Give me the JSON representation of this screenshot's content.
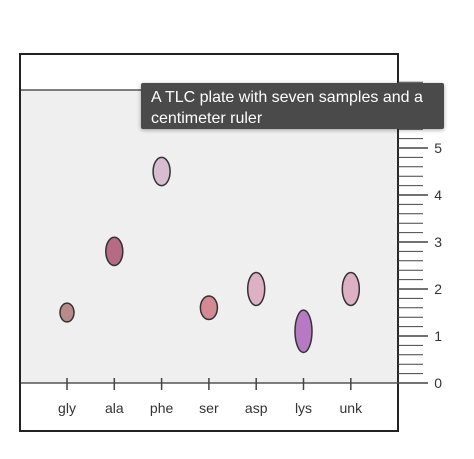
{
  "tooltip": {
    "text": "A TLC plate with seven samples and a centimeter ruler"
  },
  "plate": {
    "background_color": "#efefef",
    "outer_color": "#ffffff",
    "line_color": "#333333"
  },
  "ruler": {
    "unit": "cm",
    "max_label": 5,
    "labels": [
      "0",
      "1",
      "2",
      "3",
      "4",
      "5"
    ],
    "minor_divisions_per_cm": 5
  },
  "lanes": [
    {
      "label": "gly",
      "spot_center_cm": 1.5,
      "spot_height_cm": 0.4,
      "color": "#b88a8a"
    },
    {
      "label": "ala",
      "spot_center_cm": 2.8,
      "spot_height_cm": 0.6,
      "color": "#b56b84"
    },
    {
      "label": "phe",
      "spot_center_cm": 4.5,
      "spot_height_cm": 0.6,
      "color": "#d8bcd0"
    },
    {
      "label": "ser",
      "spot_center_cm": 1.6,
      "spot_height_cm": 0.5,
      "color": "#d48a92"
    },
    {
      "label": "asp",
      "spot_center_cm": 2.0,
      "spot_height_cm": 0.7,
      "color": "#ddb0c2"
    },
    {
      "label": "lys",
      "spot_center_cm": 1.1,
      "spot_height_cm": 0.9,
      "color": "#b779c4"
    },
    {
      "label": "unk",
      "spot_center_cm": 2.0,
      "spot_height_cm": 0.7,
      "color": "#ddb0c2"
    }
  ]
}
